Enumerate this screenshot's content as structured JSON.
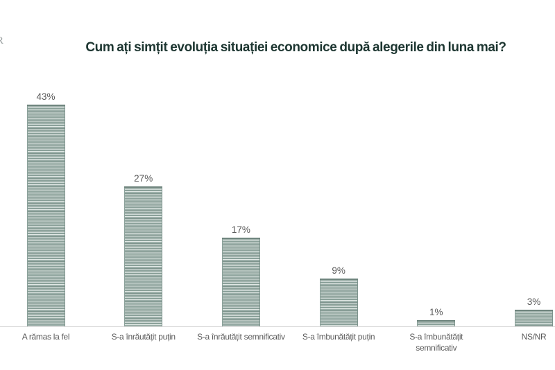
{
  "watermark": "R",
  "colors": {
    "title_text": "#1d3631",
    "label_text": "#5a5a5a",
    "axis_line": "#d8d8d8",
    "bar_base": "#9db0aa",
    "bar_stripe_light": "#cfd9d6",
    "bar_stripe_lighter": "#e2e9e6",
    "bar_stripe_dark": "#7e948d",
    "bar_top_border": "#6f857e"
  },
  "chart_data": {
    "type": "bar",
    "title": "Cum ați simțit evoluția situației economice după alegerile din luna mai?",
    "categories": [
      "A rămas la fel",
      "S-a înrăutățit puțin",
      "S-a înrăutățit semnificativ",
      "S-a îmbunătățit puțin",
      "S-a îmbunătățit semnificativ",
      "NS/NR"
    ],
    "values": [
      43,
      27,
      17,
      9,
      1,
      3
    ],
    "value_labels": [
      "43%",
      "27%",
      "17%",
      "9%",
      "1%",
      "3%"
    ],
    "unit": "%",
    "xlabel": "",
    "ylabel": "",
    "ylim": [
      0,
      45
    ],
    "grid": false,
    "legend": false,
    "y_axis_visible": false,
    "baseline_visible": true
  }
}
